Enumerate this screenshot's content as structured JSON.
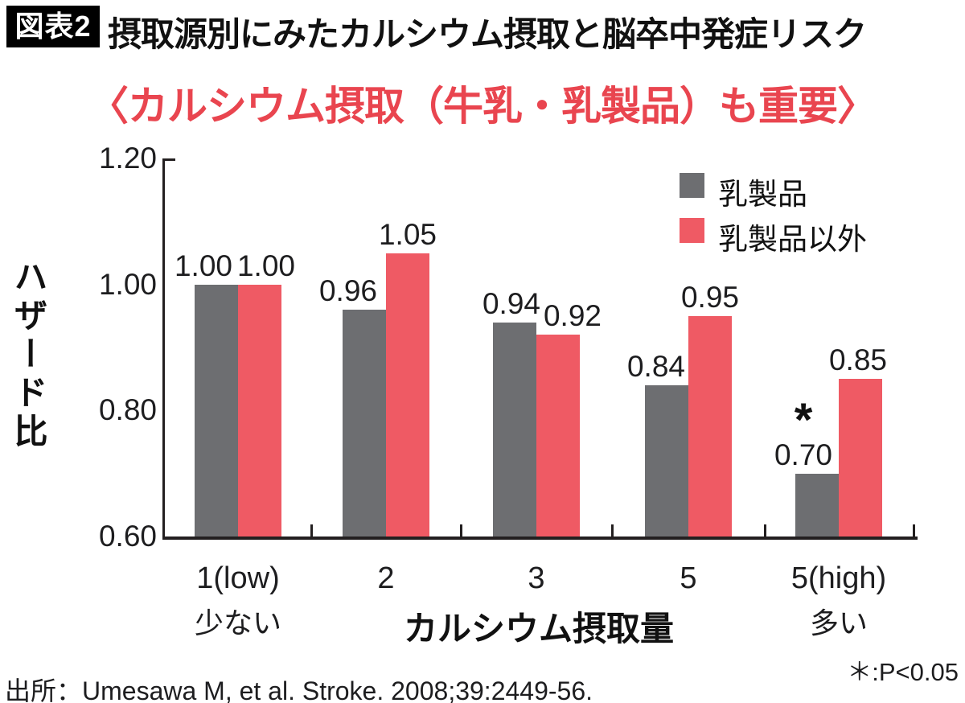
{
  "header": {
    "badge": "図表2",
    "title": "摂取源別にみたカルシウム摂取と脳卒中発症リスク"
  },
  "subtitle": "〈カルシウム摂取（牛乳・乳製品）も重要〉",
  "subtitle_color": "#e9454f",
  "chart_data": {
    "type": "bar",
    "title": "〈カルシウム摂取（牛乳・乳製品）も重要〉",
    "categories": [
      "1(low)",
      "2",
      "3",
      "5",
      "5(high)"
    ],
    "category_sublabels": [
      "少ない",
      "",
      "",
      "",
      "多い"
    ],
    "series": [
      {
        "name": "乳製品",
        "color": "#6d6e71",
        "values": [
          1.0,
          0.96,
          0.94,
          0.84,
          0.7
        ]
      },
      {
        "name": "乳製品以外",
        "color": "#ef5a64",
        "values": [
          1.0,
          1.05,
          0.92,
          0.95,
          0.85
        ]
      }
    ],
    "ylabel": "ハザード比",
    "xlabel": "カルシウム摂取量",
    "ylim": [
      0.6,
      1.2
    ],
    "yticks": [
      1.2,
      1.0,
      0.8,
      0.6
    ],
    "grid": false,
    "legend_position": "top-right",
    "annotations": [
      {
        "text": "＊",
        "series_index": 0,
        "category_index": 4,
        "meaning": "＊:P<0.05"
      }
    ]
  },
  "footnote": "＊:P<0.05",
  "source": "出所：Umesawa M, et al. Stroke. 2008;39:2449-56."
}
